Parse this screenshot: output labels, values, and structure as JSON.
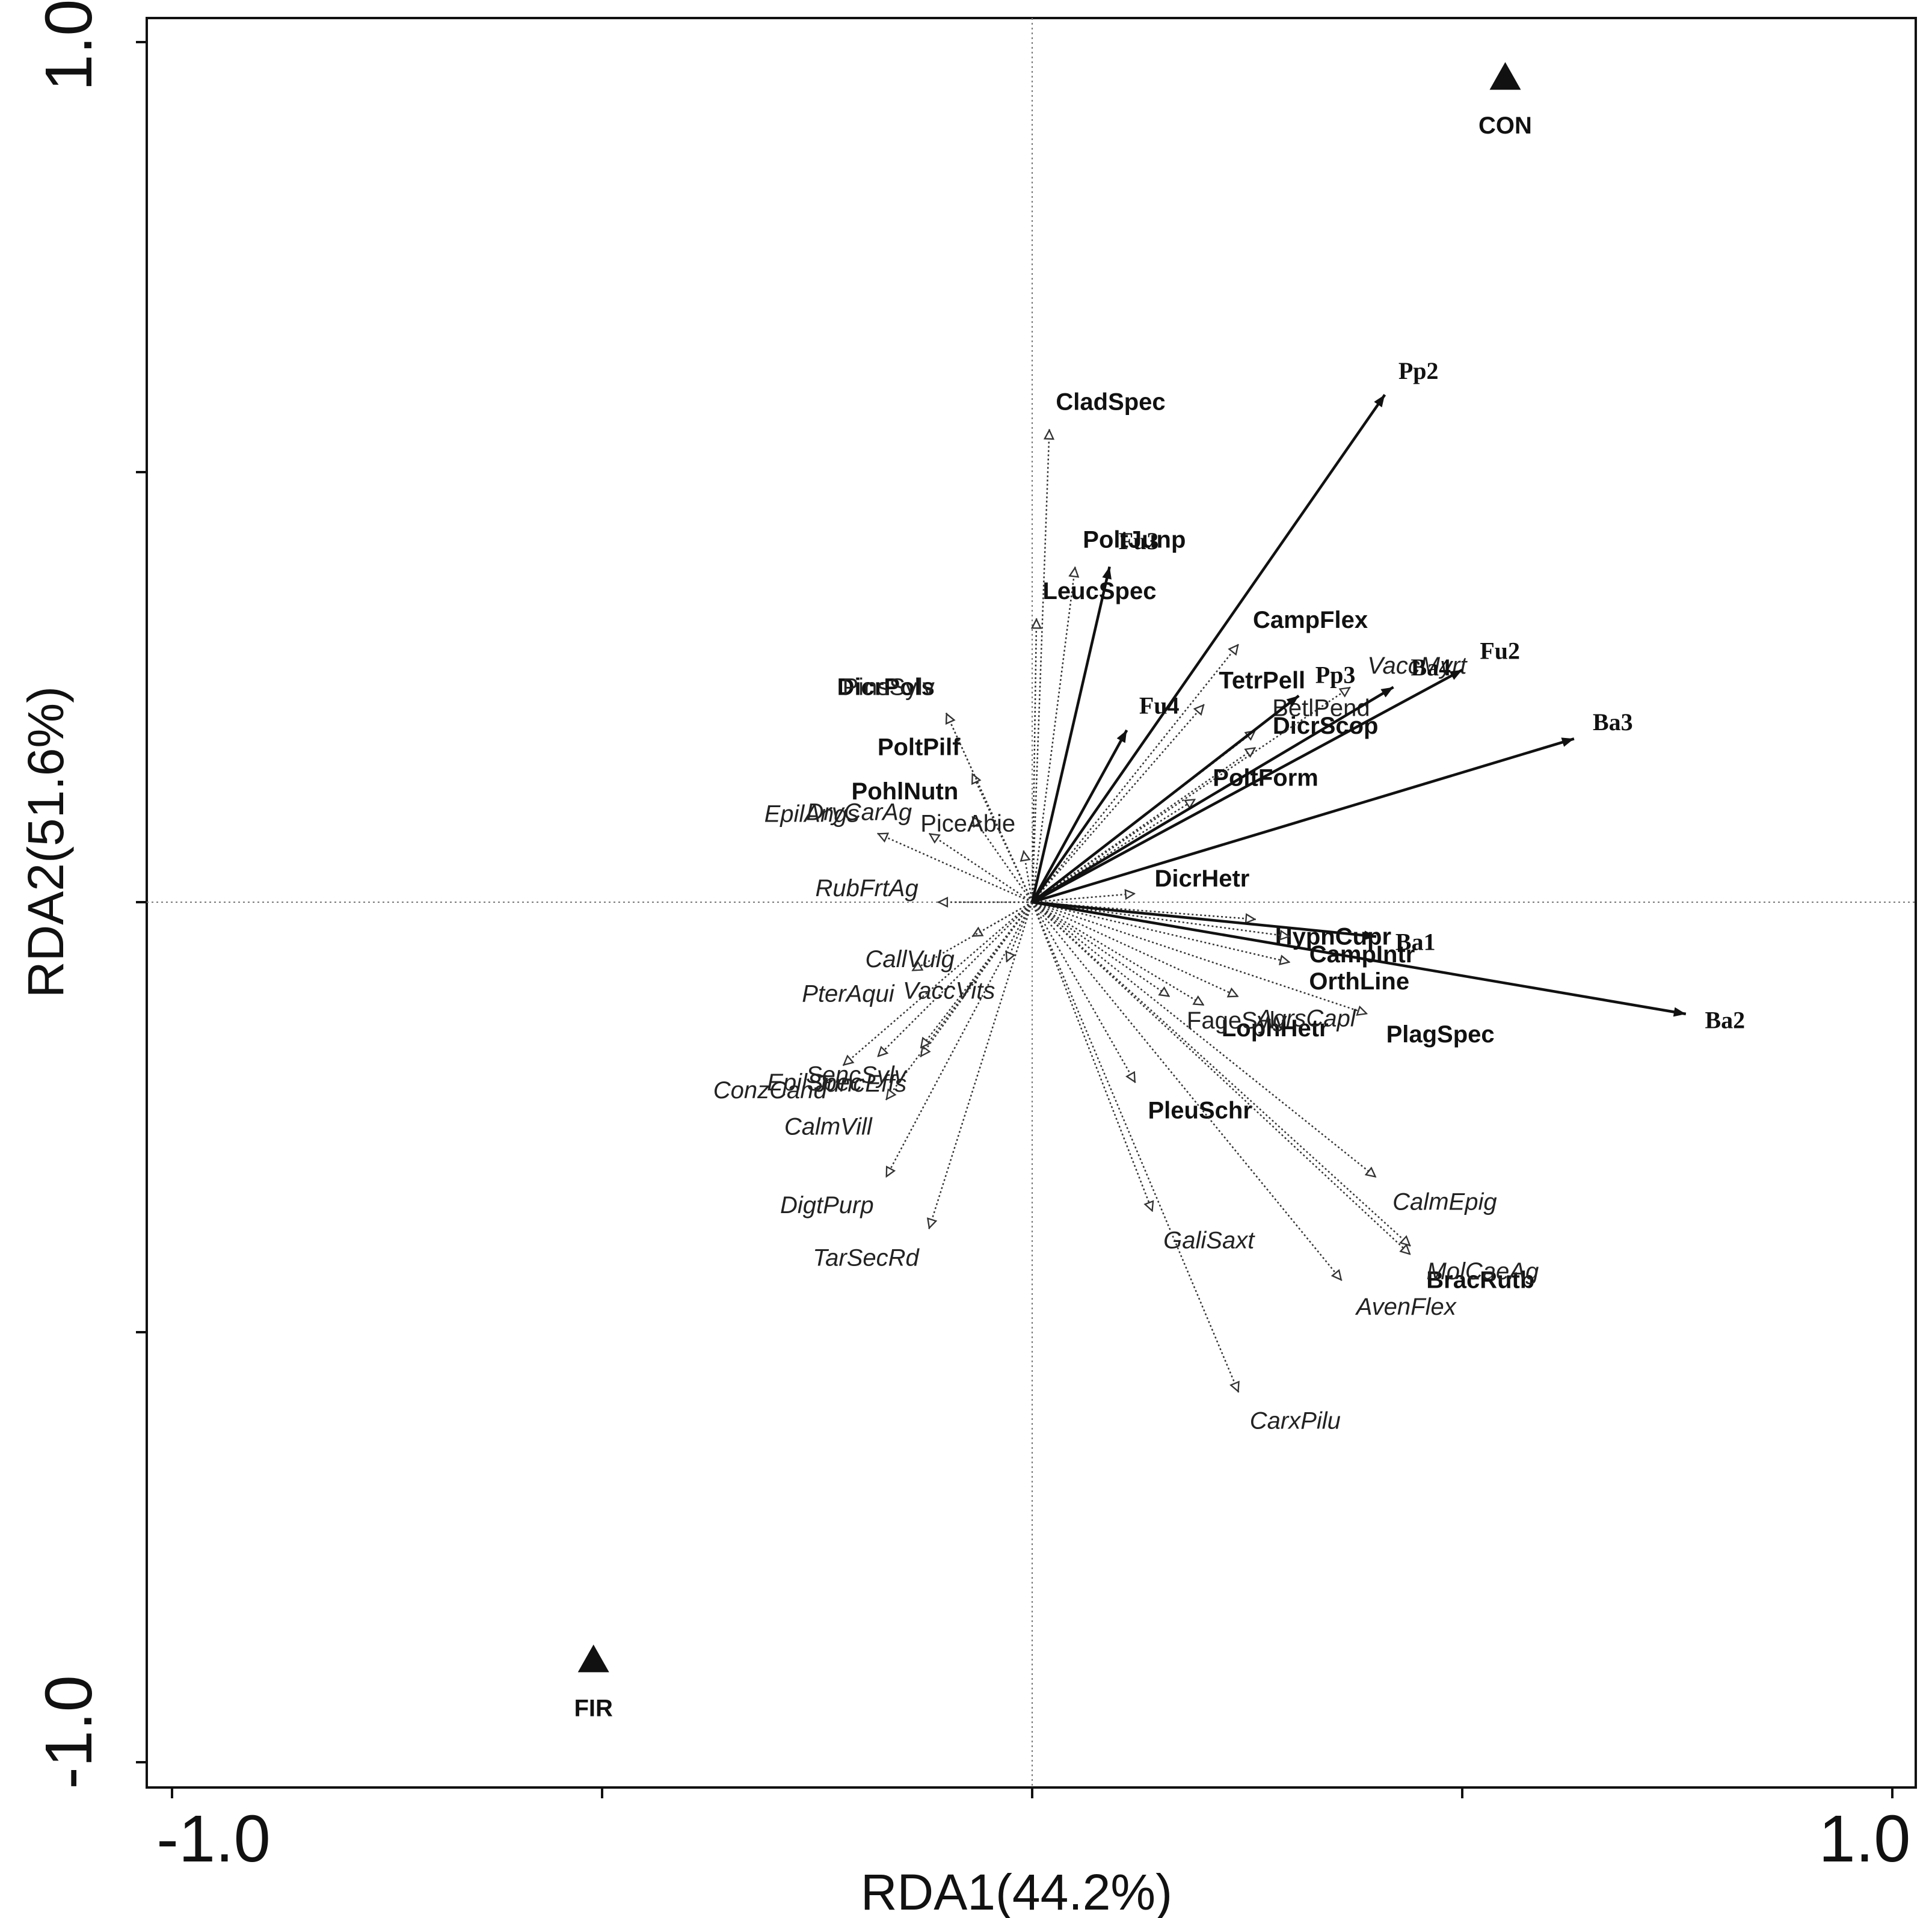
{
  "chart_data": {
    "type": "scatter",
    "subtype": "rda-biplot",
    "xlabel": "RDA1(44.2%)",
    "ylabel": "RDA2(51.6%)",
    "xlim": [
      -1.02,
      1.03
    ],
    "ylim": [
      -1.03,
      1.03
    ],
    "x_tick_labels": [
      {
        "value": -1.0,
        "label": "-1.0"
      },
      {
        "value": 1.0,
        "label": "1.0"
      }
    ],
    "y_tick_labels": [
      {
        "value": 1.0,
        "label": "1.0"
      },
      {
        "value": -1.0,
        "label": "-1.0"
      }
    ],
    "x_ticks": [
      -1.0,
      -0.5,
      0.0,
      0.5,
      1.0
    ],
    "y_ticks": [
      -1.0,
      -0.5,
      0.0,
      0.5,
      1.0
    ],
    "reference_lines": {
      "x": 0,
      "y": 0,
      "style": "dotted"
    },
    "environmental_vectors": [
      {
        "name": "Pp2",
        "x": 0.41,
        "y": 0.59
      },
      {
        "name": "Fu3",
        "x": 0.09,
        "y": 0.39
      },
      {
        "name": "Fu2",
        "x": 0.5,
        "y": 0.27
      },
      {
        "name": "Pp3",
        "x": 0.31,
        "y": 0.24
      },
      {
        "name": "Ba4",
        "x": 0.42,
        "y": 0.25
      },
      {
        "name": "Fu4",
        "x": 0.11,
        "y": 0.2
      },
      {
        "name": "Ba3",
        "x": 0.63,
        "y": 0.19
      },
      {
        "name": "Ba1",
        "x": 0.4,
        "y": -0.04
      },
      {
        "name": "Ba2",
        "x": 0.76,
        "y": -0.13
      }
    ],
    "species_bold": [
      {
        "name": "CladSpec",
        "x": 0.02,
        "y": 0.55
      },
      {
        "name": "PoltJunp",
        "x": 0.05,
        "y": 0.39
      },
      {
        "name": "LeucSpec",
        "x": 0.005,
        "y": 0.33
      },
      {
        "name": "CampFlex",
        "x": 0.24,
        "y": 0.3
      },
      {
        "name": "TetrPell",
        "x": 0.2,
        "y": 0.23
      },
      {
        "name": "DicrPols",
        "x": -0.1,
        "y": 0.22
      },
      {
        "name": "DicrScop",
        "x": 0.26,
        "y": 0.18
      },
      {
        "name": "PoltPilf",
        "x": -0.07,
        "y": 0.15
      },
      {
        "name": "PoltForm",
        "x": 0.19,
        "y": 0.12
      },
      {
        "name": "PohlNutn",
        "x": -0.07,
        "y": 0.1
      },
      {
        "name": "HypnCupr",
        "x": 0.26,
        "y": -0.02
      },
      {
        "name": "DicrHetr",
        "x": 0.12,
        "y": 0.01
      },
      {
        "name": "CampIntr",
        "x": 0.3,
        "y": -0.04
      },
      {
        "name": "OrthLine",
        "x": 0.3,
        "y": -0.07
      },
      {
        "name": "PlagSpec",
        "x": 0.39,
        "y": -0.13
      },
      {
        "name": "LophHetr",
        "x": 0.2,
        "y": -0.12
      },
      {
        "name": "PleuSchr",
        "x": 0.12,
        "y": -0.21
      },
      {
        "name": "BracRutb",
        "x": 0.44,
        "y": -0.41
      }
    ],
    "species_italic": [
      {
        "name": "VaccMyrt",
        "x": 0.37,
        "y": 0.25
      },
      {
        "name": "EpilAngs",
        "x": -0.18,
        "y": 0.08
      },
      {
        "name": "DryCarAg",
        "x": -0.12,
        "y": 0.08
      },
      {
        "name": "RubFrtAg",
        "x": -0.11,
        "y": 0.0
      },
      {
        "name": "CallVulg",
        "x": -0.07,
        "y": -0.04
      },
      {
        "name": "PterAqui",
        "x": -0.14,
        "y": -0.08
      },
      {
        "name": "VaccVits",
        "x": -0.03,
        "y": -0.07
      },
      {
        "name": "ConzCand",
        "x": -0.22,
        "y": -0.19
      },
      {
        "name": "JuncEffs",
        "x": -0.13,
        "y": -0.18
      },
      {
        "name": "CalmVill",
        "x": -0.17,
        "y": -0.23
      },
      {
        "name": "SencSylv",
        "x": -0.13,
        "y": -0.17
      },
      {
        "name": "EpilSpec",
        "x": -0.18,
        "y": -0.18
      },
      {
        "name": "DigtPurp",
        "x": -0.17,
        "y": -0.32
      },
      {
        "name": "TarSecRd",
        "x": -0.12,
        "y": -0.38
      },
      {
        "name": "AgrsCapl",
        "x": 0.24,
        "y": -0.11
      },
      {
        "name": "CalmEpig",
        "x": 0.4,
        "y": -0.32
      },
      {
        "name": "MolCaeAg",
        "x": 0.44,
        "y": -0.4
      },
      {
        "name": "GaliSaxt",
        "x": 0.14,
        "y": -0.36
      },
      {
        "name": "AvenFlex",
        "x": 0.36,
        "y": -0.44
      },
      {
        "name": "CarxPilu",
        "x": 0.24,
        "y": -0.57
      }
    ],
    "species_plain": [
      {
        "name": "PinsSylv",
        "x": -0.1,
        "y": 0.22
      },
      {
        "name": "BetlPend",
        "x": 0.26,
        "y": 0.2
      },
      {
        "name": "PiceAbie",
        "x": -0.01,
        "y": 0.06
      },
      {
        "name": "FageSylv",
        "x": 0.16,
        "y": -0.11
      }
    ],
    "sites": [
      {
        "name": "CON",
        "x": 0.55,
        "y": 0.96
      },
      {
        "name": "FIR",
        "x": -0.51,
        "y": -0.88
      }
    ]
  }
}
